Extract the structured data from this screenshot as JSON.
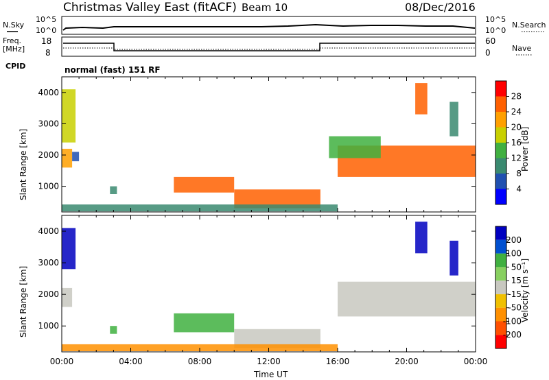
{
  "header": {
    "title": "Christmas Valley East (fitACF)",
    "beam_label": "Beam 10",
    "date": "08/Dec/2016"
  },
  "strips": {
    "nsky": {
      "label": "N.Sky",
      "ticks": [
        "10^5",
        "10^0"
      ],
      "right_ticks": [
        "10^5",
        "10^0"
      ],
      "right_label": "N.Search"
    },
    "freq": {
      "label_line1": "Freq.",
      "label_line2": "[MHz]",
      "ticks": [
        "18",
        "8"
      ],
      "right_ticks": [
        "60",
        "0"
      ],
      "right_label": "Nave"
    },
    "cpid": {
      "label": "CPID",
      "text": "normal (fast) 151 RF"
    }
  },
  "colors": {
    "power": [
      "#0000ff",
      "#2050b0",
      "#3a8a70",
      "#40b040",
      "#c8d000",
      "#ffa000",
      "#ff6000",
      "#ff0000"
    ],
    "velocity": [
      "#0000c0",
      "#0050d0",
      "#40b040",
      "#88d060",
      "#c8c8c0",
      "#f0c000",
      "#ff9000",
      "#ff5000",
      "#ff0000"
    ]
  },
  "chart_data": [
    {
      "type": "heatmap",
      "name": "Power",
      "ylabel": "Slant Range [km]",
      "yticks": [
        "1000",
        "2000",
        "3000",
        "4000"
      ],
      "xticks": [
        "00:00",
        "04:00",
        "08:00",
        "12:00",
        "16:00",
        "20:00",
        "00:00"
      ],
      "colorbar_label": "Power [dB]",
      "colorbar_ticks": [
        "4",
        "8",
        "12",
        "16",
        "20",
        "24",
        "28"
      ],
      "ylim": [
        180,
        4500
      ],
      "xlim_hours": [
        0,
        24
      ],
      "regions": [
        {
          "t": [
            0.0,
            0.8
          ],
          "r": [
            2400,
            4100
          ],
          "lvl": 4
        },
        {
          "t": [
            0.0,
            0.6
          ],
          "r": [
            1600,
            2200
          ],
          "lvl": 5
        },
        {
          "t": [
            0.6,
            1.0
          ],
          "r": [
            1800,
            2100
          ],
          "lvl": 1
        },
        {
          "t": [
            2.8,
            3.2
          ],
          "r": [
            750,
            1000
          ],
          "lvl": 2
        },
        {
          "t": [
            6.5,
            10.0
          ],
          "r": [
            800,
            1300
          ],
          "lvl": 6
        },
        {
          "t": [
            10.0,
            15.0
          ],
          "r": [
            300,
            900
          ],
          "lvl": 6
        },
        {
          "t": [
            0.0,
            16.0
          ],
          "r": [
            200,
            420
          ],
          "lvl": 2
        },
        {
          "t": [
            16.0,
            24.0
          ],
          "r": [
            1300,
            2300
          ],
          "lvl": 6
        },
        {
          "t": [
            15.5,
            18.5
          ],
          "r": [
            1900,
            2600
          ],
          "lvl": 3
        },
        {
          "t": [
            20.5,
            21.2
          ],
          "r": [
            3300,
            4300
          ],
          "lvl": 6
        },
        {
          "t": [
            22.5,
            23.0
          ],
          "r": [
            2600,
            3700
          ],
          "lvl": 2
        }
      ]
    },
    {
      "type": "heatmap",
      "name": "Velocity",
      "ylabel": "Slant Range [km]",
      "yticks": [
        "1000",
        "2000",
        "3000",
        "4000"
      ],
      "xticks": [
        "00:00",
        "04:00",
        "08:00",
        "12:00",
        "16:00",
        "20:00",
        "00:00"
      ],
      "xlabel": "Time UT",
      "colorbar_label": "Velocity [m s⁻¹]",
      "colorbar_ticks": [
        "200",
        "100",
        "50",
        "15",
        "-15",
        "-50",
        "-100",
        "-200"
      ],
      "ylim": [
        180,
        4500
      ],
      "xlim_hours": [
        0,
        24
      ],
      "regions": [
        {
          "t": [
            0.0,
            0.8
          ],
          "r": [
            2800,
            4100
          ],
          "lvl": 0
        },
        {
          "t": [
            0.0,
            0.6
          ],
          "r": [
            1600,
            2200
          ],
          "lvl": 4
        },
        {
          "t": [
            2.8,
            3.2
          ],
          "r": [
            750,
            1000
          ],
          "lvl": 2
        },
        {
          "t": [
            6.5,
            10.0
          ],
          "r": [
            800,
            1400
          ],
          "lvl": 2
        },
        {
          "t": [
            10.0,
            15.0
          ],
          "r": [
            300,
            900
          ],
          "lvl": 4
        },
        {
          "t": [
            0.0,
            16.0
          ],
          "r": [
            200,
            420
          ],
          "lvl": 6
        },
        {
          "t": [
            16.0,
            24.0
          ],
          "r": [
            1300,
            2400
          ],
          "lvl": 4
        },
        {
          "t": [
            20.5,
            21.2
          ],
          "r": [
            3300,
            4300
          ],
          "lvl": 0
        },
        {
          "t": [
            22.5,
            23.0
          ],
          "r": [
            2600,
            3700
          ],
          "lvl": 0
        }
      ]
    }
  ]
}
